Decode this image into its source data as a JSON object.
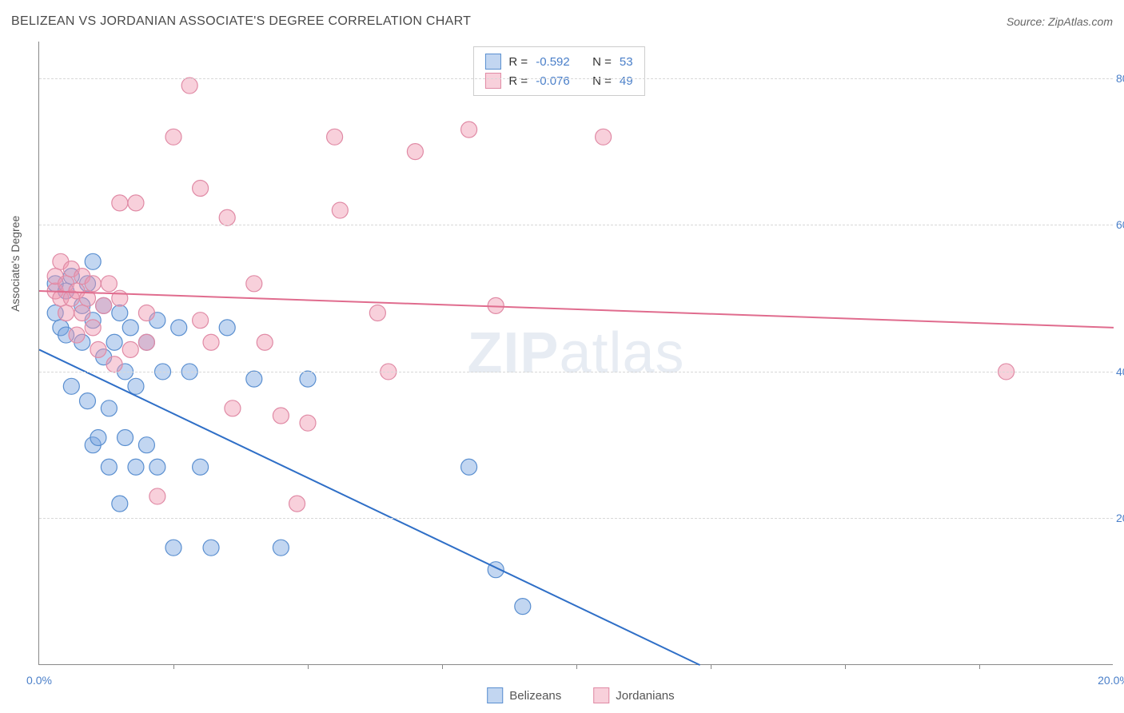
{
  "header": {
    "title": "BELIZEAN VS JORDANIAN ASSOCIATE'S DEGREE CORRELATION CHART",
    "source": "Source: ZipAtlas.com"
  },
  "chart": {
    "type": "scatter",
    "y_axis_label": "Associate's Degree",
    "watermark": "ZIPatlas",
    "background_color": "#ffffff",
    "grid_color": "#d8d8d8",
    "axis_color": "#888888",
    "tick_label_color": "#4a7fc9",
    "tick_fontsize": 14,
    "xlim": [
      0,
      20
    ],
    "ylim": [
      0,
      85
    ],
    "x_ticks": [
      0,
      20
    ],
    "x_tick_marks": [
      2.5,
      5,
      7.5,
      10,
      12.5,
      15,
      17.5
    ],
    "y_ticks": [
      20,
      40,
      60,
      80
    ],
    "marker_radius": 10,
    "marker_stroke_width": 1.2,
    "line_width": 2,
    "series": [
      {
        "name": "Belizeans",
        "fill": "rgba(120,165,225,0.45)",
        "stroke": "#5a8fd0",
        "line_color": "#2f6fc7",
        "R": "-0.592",
        "N": "53",
        "trend": {
          "x1": 0,
          "y1": 43,
          "x2": 12.3,
          "y2": 0
        },
        "points": [
          [
            0.3,
            48
          ],
          [
            0.3,
            52
          ],
          [
            0.4,
            46
          ],
          [
            0.5,
            45
          ],
          [
            0.5,
            51
          ],
          [
            0.6,
            38
          ],
          [
            0.6,
            53
          ],
          [
            0.8,
            44
          ],
          [
            0.8,
            49
          ],
          [
            0.9,
            36
          ],
          [
            0.9,
            52
          ],
          [
            1.0,
            30
          ],
          [
            1.0,
            47
          ],
          [
            1.0,
            55
          ],
          [
            1.1,
            31
          ],
          [
            1.2,
            42
          ],
          [
            1.2,
            49
          ],
          [
            1.3,
            35
          ],
          [
            1.3,
            27
          ],
          [
            1.4,
            44
          ],
          [
            1.5,
            22
          ],
          [
            1.5,
            48
          ],
          [
            1.6,
            31
          ],
          [
            1.6,
            40
          ],
          [
            1.7,
            46
          ],
          [
            1.8,
            27
          ],
          [
            1.8,
            38
          ],
          [
            2.0,
            30
          ],
          [
            2.0,
            44
          ],
          [
            2.2,
            47
          ],
          [
            2.2,
            27
          ],
          [
            2.3,
            40
          ],
          [
            2.5,
            16
          ],
          [
            2.6,
            46
          ],
          [
            2.8,
            40
          ],
          [
            3.0,
            27
          ],
          [
            3.2,
            16
          ],
          [
            3.5,
            46
          ],
          [
            4.0,
            39
          ],
          [
            4.5,
            16
          ],
          [
            5.0,
            39
          ],
          [
            8.0,
            27
          ],
          [
            8.5,
            13
          ],
          [
            9.0,
            8
          ]
        ]
      },
      {
        "name": "Jordanians",
        "fill": "rgba(240,150,175,0.45)",
        "stroke": "#e08aa5",
        "line_color": "#e06c8e",
        "R": "-0.076",
        "N": "49",
        "trend": {
          "x1": 0,
          "y1": 51,
          "x2": 20,
          "y2": 46
        },
        "points": [
          [
            0.3,
            51
          ],
          [
            0.3,
            53
          ],
          [
            0.4,
            50
          ],
          [
            0.4,
            55
          ],
          [
            0.5,
            48
          ],
          [
            0.5,
            52
          ],
          [
            0.6,
            50
          ],
          [
            0.6,
            54
          ],
          [
            0.7,
            45
          ],
          [
            0.7,
            51
          ],
          [
            0.8,
            48
          ],
          [
            0.8,
            53
          ],
          [
            0.9,
            50
          ],
          [
            1.0,
            46
          ],
          [
            1.0,
            52
          ],
          [
            1.1,
            43
          ],
          [
            1.2,
            49
          ],
          [
            1.3,
            52
          ],
          [
            1.4,
            41
          ],
          [
            1.5,
            63
          ],
          [
            1.5,
            50
          ],
          [
            1.7,
            43
          ],
          [
            1.8,
            63
          ],
          [
            2.0,
            48
          ],
          [
            2.0,
            44
          ],
          [
            2.2,
            23
          ],
          [
            2.5,
            72
          ],
          [
            2.8,
            79
          ],
          [
            3.0,
            47
          ],
          [
            3.0,
            65
          ],
          [
            3.2,
            44
          ],
          [
            3.5,
            61
          ],
          [
            3.6,
            35
          ],
          [
            4.0,
            52
          ],
          [
            4.2,
            44
          ],
          [
            4.5,
            34
          ],
          [
            4.8,
            22
          ],
          [
            5.0,
            33
          ],
          [
            5.5,
            72
          ],
          [
            5.6,
            62
          ],
          [
            6.3,
            48
          ],
          [
            6.5,
            40
          ],
          [
            7.0,
            70
          ],
          [
            8.0,
            73
          ],
          [
            8.5,
            49
          ],
          [
            10.5,
            72
          ],
          [
            18.0,
            40
          ]
        ]
      }
    ],
    "legend_top": {
      "r_label": "R =",
      "n_label": "N ="
    },
    "legend_bottom": [
      {
        "label": "Belizeans",
        "series": 0
      },
      {
        "label": "Jordanians",
        "series": 1
      }
    ]
  }
}
